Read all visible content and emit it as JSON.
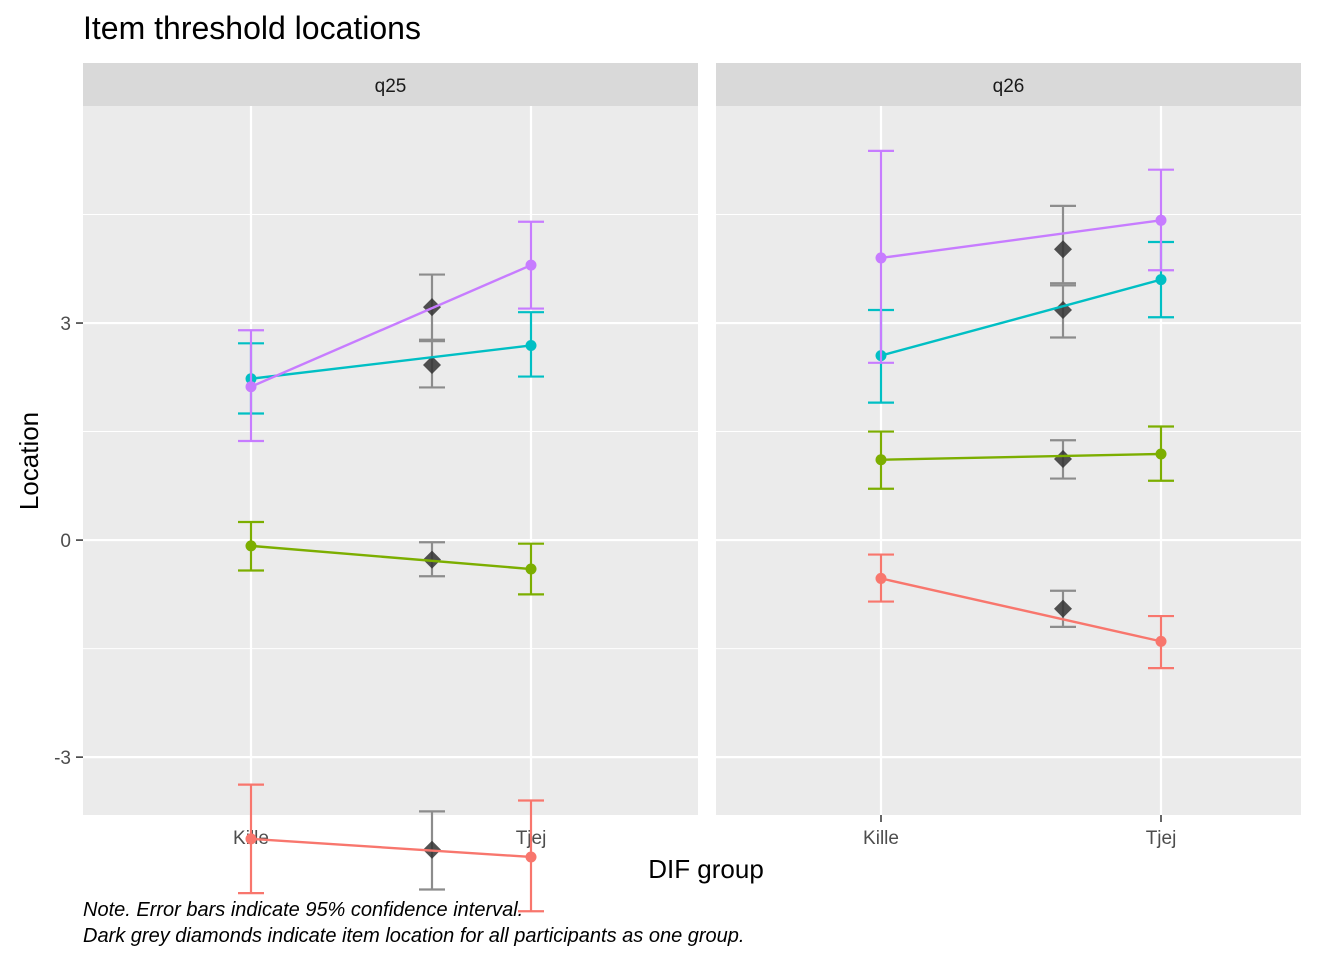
{
  "chart_data": {
    "type": "line",
    "title": "Item threshold locations",
    "xlabel": "DIF group",
    "ylabel": "Location",
    "categories": [
      "Kille",
      "Tjej"
    ],
    "ylim": [
      -3.8,
      6.0
    ],
    "yticks": [
      -3,
      0,
      3
    ],
    "grid": true,
    "legend": "none",
    "caption_lines": [
      "Note. Error bars indicate 95% confidence interval.",
      "Dark grey diamonds indicate item location for all participants as one group."
    ],
    "series_colors": [
      "#F8766D",
      "#7CAE00",
      "#00BFC4",
      "#C77CFF"
    ],
    "overall_color": "#333333",
    "panels": [
      {
        "label": "q25",
        "thresholds": [
          {
            "groups": [
              {
                "value": -4.13,
                "lower": -4.88,
                "upper": -3.38
              },
              {
                "value": -4.38,
                "lower": -5.13,
                "upper": -3.6
              }
            ],
            "overall": {
              "value": -4.28,
              "lower": -4.83,
              "upper": -3.75
            }
          },
          {
            "groups": [
              {
                "value": -0.08,
                "lower": -0.42,
                "upper": 0.25
              },
              {
                "value": -0.4,
                "lower": -0.75,
                "upper": -0.05
              }
            ],
            "overall": {
              "value": -0.27,
              "lower": -0.5,
              "upper": -0.03
            }
          },
          {
            "groups": [
              {
                "value": 2.23,
                "lower": 1.75,
                "upper": 2.72
              },
              {
                "value": 2.69,
                "lower": 2.26,
                "upper": 3.15
              }
            ],
            "overall": {
              "value": 2.42,
              "lower": 2.11,
              "upper": 2.75
            }
          },
          {
            "groups": [
              {
                "value": 2.12,
                "lower": 1.37,
                "upper": 2.9
              },
              {
                "value": 3.8,
                "lower": 3.2,
                "upper": 4.4
              }
            ],
            "overall": {
              "value": 3.22,
              "lower": 2.77,
              "upper": 3.67
            }
          }
        ]
      },
      {
        "label": "q26",
        "thresholds": [
          {
            "groups": [
              {
                "value": -0.53,
                "lower": -0.85,
                "upper": -0.2
              },
              {
                "value": -1.4,
                "lower": -1.77,
                "upper": -1.05
              }
            ],
            "overall": {
              "value": -0.95,
              "lower": -1.2,
              "upper": -0.7
            }
          },
          {
            "groups": [
              {
                "value": 1.11,
                "lower": 0.71,
                "upper": 1.5
              },
              {
                "value": 1.19,
                "lower": 0.82,
                "upper": 1.57
              }
            ],
            "overall": {
              "value": 1.12,
              "lower": 0.85,
              "upper": 1.38
            }
          },
          {
            "groups": [
              {
                "value": 2.55,
                "lower": 1.9,
                "upper": 3.18
              },
              {
                "value": 3.6,
                "lower": 3.08,
                "upper": 4.12
              }
            ],
            "overall": {
              "value": 3.18,
              "lower": 2.8,
              "upper": 3.52
            }
          },
          {
            "groups": [
              {
                "value": 3.9,
                "lower": 2.45,
                "upper": 5.38
              },
              {
                "value": 4.42,
                "lower": 3.73,
                "upper": 5.12
              }
            ],
            "overall": {
              "value": 4.02,
              "lower": 3.55,
              "upper": 4.62
            }
          }
        ]
      }
    ]
  }
}
